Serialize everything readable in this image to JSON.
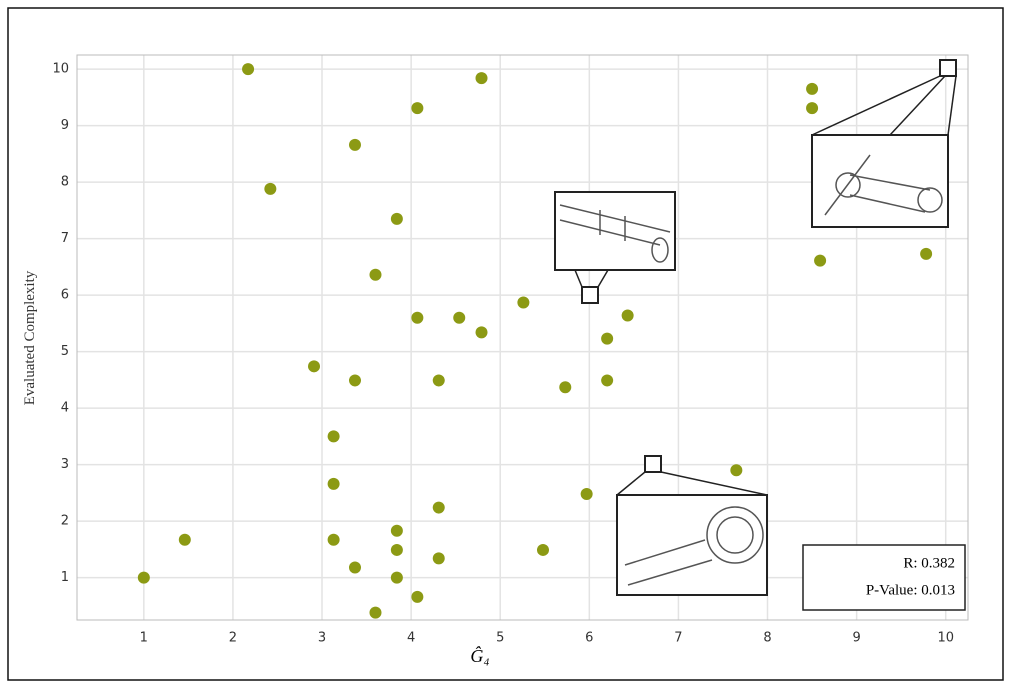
{
  "chart_data": {
    "type": "scatter",
    "xlabel": "Ĝ₄",
    "ylabel": "Evaluated Complexity",
    "color": "#8c9a14",
    "xlim": [
      0.25,
      10.25
    ],
    "ylim": [
      0.25,
      10.25
    ],
    "xticks": [
      1,
      2,
      3,
      4,
      5,
      6,
      7,
      8,
      9,
      10
    ],
    "yticks": [
      1,
      2,
      3,
      4,
      5,
      6,
      7,
      8,
      9,
      10
    ],
    "grid": true,
    "annotations": [
      "R: 0.382",
      "P-Value: 0.013"
    ],
    "x": [
      1,
      1.46,
      2.17,
      2.42,
      2.91,
      3.13,
      3.13,
      3.13,
      3.37,
      3.37,
      3.37,
      3.6,
      3.6,
      3.84,
      3.84,
      3.84,
      3.84,
      4.07,
      4.07,
      4.07,
      4.31,
      4.31,
      4.31,
      4.54,
      4.79,
      4.79,
      5.26,
      5.48,
      5.73,
      5.97,
      5.99,
      6.2,
      6.2,
      6.43,
      6.69,
      7.65,
      8.5,
      8.5,
      8.59,
      9.78,
      10
    ],
    "y": [
      1,
      1.67,
      10,
      7.88,
      4.74,
      3.5,
      2.66,
      1.67,
      8.66,
      4.49,
      1.18,
      6.36,
      0.38,
      7.35,
      1.83,
      1.49,
      1,
      9.31,
      5.6,
      0.66,
      4.49,
      2.24,
      1.34,
      5.6,
      9.84,
      5.34,
      5.87,
      1.49,
      4.37,
      2.48,
      5.99,
      5.23,
      4.49,
      5.64,
      3.01,
      2.9,
      9.65,
      9.31,
      6.61,
      6.73,
      10
    ]
  }
}
